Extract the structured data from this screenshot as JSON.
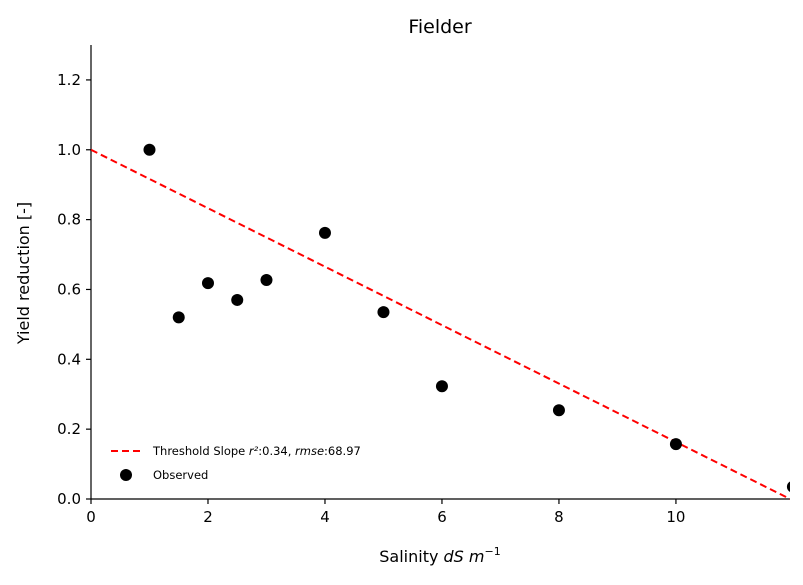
{
  "chart_data": {
    "type": "scatter",
    "title": "Fielder",
    "xlabel": {
      "prefix": "Salinity ",
      "var": "dS",
      "space": " ",
      "unit": "m",
      "exp": "−1"
    },
    "ylabel": "Yield reduction [-]",
    "xlim": [
      0,
      11.95
    ],
    "ylim": [
      0,
      1.3
    ],
    "xticks": [
      0,
      2,
      4,
      6,
      8,
      10
    ],
    "xtick_labels": [
      "0",
      "2",
      "4",
      "6",
      "8",
      "10"
    ],
    "yticks": [
      0.0,
      0.2,
      0.4,
      0.6,
      0.8,
      1.0,
      1.2
    ],
    "ytick_labels": [
      "0.0",
      "0.2",
      "0.4",
      "0.6",
      "0.8",
      "1.0",
      "1.2"
    ],
    "grid": false,
    "legend_position": "lower-left",
    "series": [
      {
        "name": "Threshold Slope",
        "kind": "line",
        "style": "dashed",
        "color": "#ff0000",
        "x": [
          0,
          11.95
        ],
        "y": [
          1.0,
          0.0
        ]
      },
      {
        "name": "Observed",
        "kind": "scatter",
        "color": "#000000",
        "x": [
          1.0,
          1.5,
          2.0,
          2.5,
          3.0,
          4.0,
          5.0,
          6.0,
          8.0,
          10.0,
          12.0
        ],
        "y": [
          1.0,
          0.52,
          0.618,
          0.57,
          0.627,
          0.762,
          0.535,
          0.323,
          0.254,
          0.157,
          0.035
        ]
      }
    ],
    "legend": {
      "line_label": {
        "text": "Threshold Slope ",
        "r2": "r²",
        "r2_value": ":0.34, ",
        "rmse": "rmse",
        "rmse_value": ":68.97"
      },
      "scatter_label": "Observed"
    }
  }
}
